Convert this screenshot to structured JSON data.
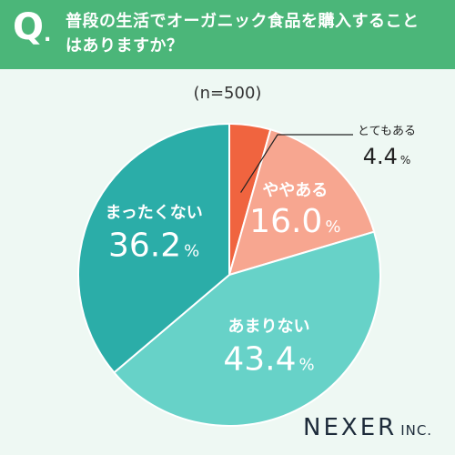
{
  "header": {
    "q_mark": "Q",
    "q_dot": ".",
    "question_line1": "普段の生活でオーガニック食品を購入すること",
    "question_line2": "はありますか？"
  },
  "sample_size": "(n=500)",
  "colors": {
    "header_bg": "#4bb679",
    "background": "#eef8f3",
    "often": "#f0643f",
    "sometimes": "#f7a690",
    "rarely": "#67d2c8",
    "never": "#2bada8"
  },
  "chart_data": {
    "type": "pie",
    "title": "普段の生活でオーガニック食品を購入することはありますか？",
    "slices": [
      {
        "label": "とてもある",
        "value": 4.4,
        "display": "4.4",
        "unit": "%",
        "color": "#f0643f"
      },
      {
        "label": "ややある",
        "value": 16.0,
        "display": "16.0",
        "unit": "%",
        "color": "#f7a690"
      },
      {
        "label": "あまりない",
        "value": 43.4,
        "display": "43.4",
        "unit": "%",
        "color": "#67d2c8"
      },
      {
        "label": "まったくない",
        "value": 36.2,
        "display": "36.2",
        "unit": "%",
        "color": "#2bada8"
      }
    ],
    "start_angle": "12 o'clock",
    "direction": "clockwise"
  },
  "logo": {
    "name": "NEXER",
    "suffix": "INC."
  }
}
